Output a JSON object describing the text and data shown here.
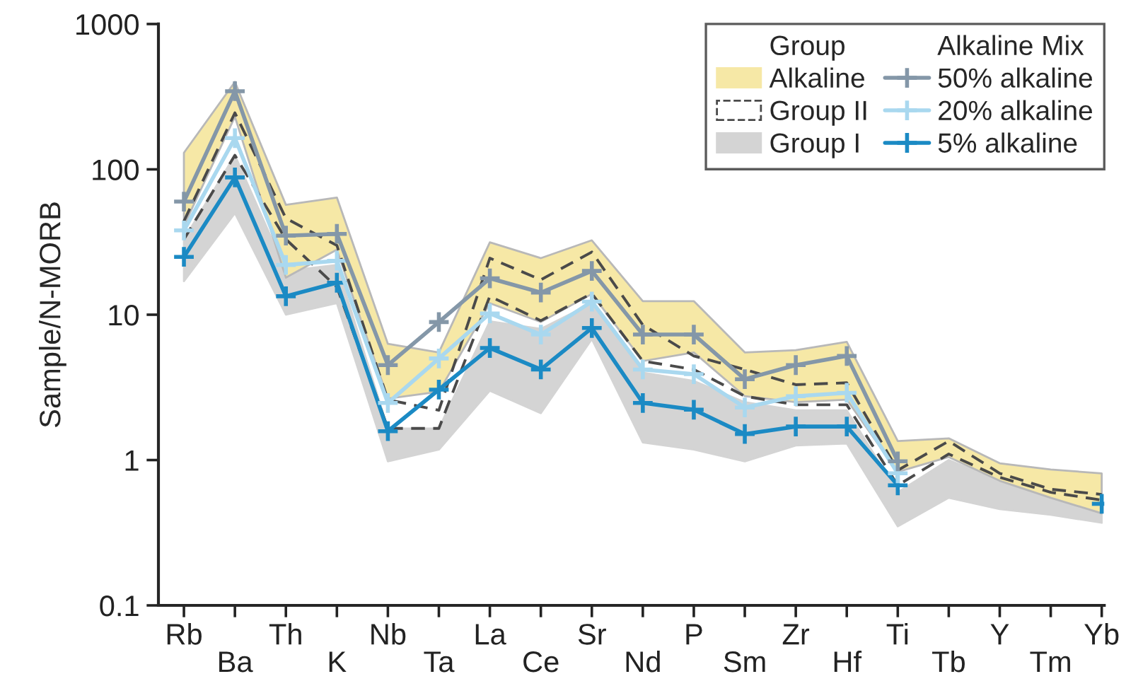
{
  "chart_data": {
    "type": "line",
    "ylabel": "Sample/N-MORB",
    "log": true,
    "ylim": [
      0.1,
      1000
    ],
    "yticks": [
      0.1,
      1,
      10,
      100,
      1000
    ],
    "grid": false,
    "legend": "top right",
    "legend_title": "Group",
    "annotations": [
      "Alkaline Mix"
    ],
    "marker": "cross",
    "categories": [
      "Rb",
      "Ba",
      "Th",
      "K",
      "Nb",
      "Ta",
      "La",
      "Ce",
      "Sr",
      "Nd",
      "P",
      "Sm",
      "Zr",
      "Hf",
      "Ti",
      "Tb",
      "Y",
      "Tm",
      "Yb"
    ],
    "series": [
      {
        "name": "Alkaline",
        "type": "area",
        "color": "#f6e8a6",
        "values": [
          null,
          null,
          null,
          null,
          null,
          null,
          null,
          null,
          null,
          null,
          null,
          null,
          null,
          null,
          null,
          null,
          null,
          null,
          null
        ],
        "lower": [
          41,
          230,
          18,
          28,
          2.65,
          2.95,
          12,
          8.9,
          13.9,
          4.8,
          5.5,
          2.75,
          2.5,
          2.6,
          0.83,
          1.05,
          0.72,
          0.55,
          0.43
        ],
        "upper": [
          130,
          400,
          57,
          64,
          6.3,
          5.5,
          31.5,
          24.5,
          32.5,
          12.4,
          12.4,
          5.5,
          5.7,
          6.5,
          1.35,
          1.41,
          0.95,
          0.86,
          0.81
        ]
      },
      {
        "name": "Group II",
        "line_style": "dashed",
        "marker": "none",
        "color": "#4a4a4a",
        "values": [
          44,
          245,
          46,
          30,
          2.6,
          2.2,
          24.5,
          17.4,
          27,
          8.5,
          5.2,
          4.2,
          3.3,
          3.4,
          0.85,
          1.35,
          0.81,
          0.63,
          0.58
        ]
      },
      {
        "line_style": "dashed",
        "marker": "none",
        "color": "#4a4a4a",
        "values": [
          33,
          125,
          33,
          15.5,
          1.65,
          1.65,
          13.4,
          9.1,
          14,
          4.8,
          4.2,
          2.75,
          2.4,
          2.4,
          0.67,
          1.1,
          0.76,
          0.6,
          0.53
        ]
      },
      {
        "name": "Group I",
        "type": "area",
        "color": "#d4d4d4",
        "values": [
          null,
          null,
          null,
          null,
          null,
          null,
          null,
          null,
          null,
          null,
          null,
          null,
          null,
          null,
          null,
          null,
          null,
          null,
          null
        ],
        "lower": [
          17,
          50,
          10,
          12,
          0.98,
          1.18,
          3,
          2.1,
          6.8,
          1.32,
          1.18,
          0.98,
          1.26,
          1.3,
          0.35,
          0.55,
          0.46,
          0.42,
          0.37
        ],
        "upper": [
          33,
          125,
          20,
          22,
          1.65,
          1.65,
          9,
          8,
          12,
          4,
          3.5,
          2.5,
          2.2,
          2.2,
          0.6,
          1.0,
          0.72,
          0.6,
          0.5
        ]
      },
      {
        "name": "50% alkaline",
        "color": "#8497a8",
        "values": [
          60,
          345,
          35,
          36,
          4.5,
          8.9,
          17.8,
          14.2,
          20,
          7.3,
          7.3,
          3.6,
          4.5,
          5.2,
          0.98,
          null,
          null,
          null,
          null
        ]
      },
      {
        "name": "20% alkaline",
        "color": "#a9d8ef",
        "values": [
          38,
          164,
          22,
          23.5,
          2.47,
          5.0,
          10.2,
          7.3,
          12.3,
          4.2,
          3.9,
          2.3,
          2.75,
          2.9,
          0.81,
          null,
          null,
          null,
          null
        ]
      },
      {
        "name": "5% alkaline",
        "color": "#1b8ac4",
        "values": [
          25,
          88,
          13.4,
          16.6,
          1.58,
          3.05,
          5.9,
          4.2,
          8.1,
          2.47,
          2.22,
          1.51,
          1.7,
          1.7,
          0.67,
          null,
          null,
          null,
          0.5
        ]
      }
    ]
  }
}
